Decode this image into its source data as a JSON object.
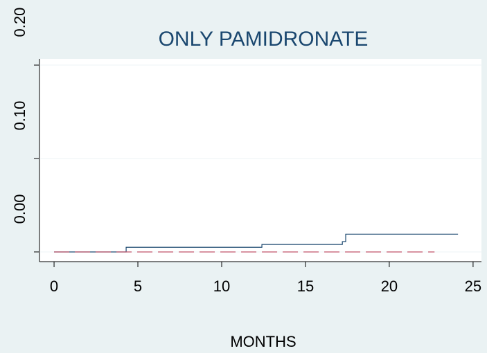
{
  "chart_data": {
    "type": "line",
    "title": "ONLY PAMIDRONATE",
    "xlabel": "MONTHS",
    "xlim": [
      -0.87,
      25.5
    ],
    "xticks": [
      0,
      5,
      10,
      15,
      20,
      25
    ],
    "ylim": [
      -0.0104,
      0.2067
    ],
    "yticks": [
      {
        "value": 0,
        "label": "0.00"
      },
      {
        "value": 0.1,
        "label": "0.10"
      },
      {
        "value": 0.2,
        "label": "0.20"
      }
    ],
    "grid": true,
    "series": [
      {
        "color": "#1a476f",
        "dash": false,
        "x": [
          0,
          4.3,
          4.3,
          12.4,
          12.4,
          17.2,
          17.2,
          17.4,
          17.4,
          24.1
        ],
        "values": [
          0,
          0,
          0.005,
          0.005,
          0.008,
          0.008,
          0.011,
          0.011,
          0.019,
          0.019
        ]
      },
      {
        "color": "#c0546a",
        "dash": true,
        "x": [
          0,
          22.7
        ],
        "values": [
          0,
          0
        ]
      }
    ]
  }
}
